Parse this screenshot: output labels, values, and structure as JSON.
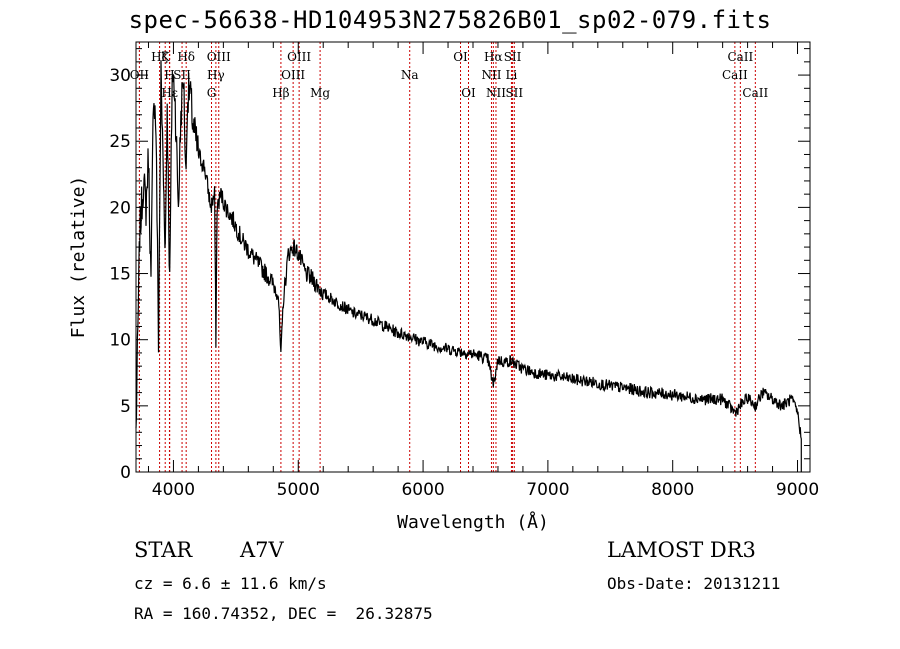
{
  "chart_data": {
    "type": "line",
    "title": "spec-56638-HD104953N275826B01_sp02-079.fits",
    "xlabel": "Wavelength (Å)",
    "ylabel": "Flux (relative)",
    "xlim": [
      3700,
      9100
    ],
    "ylim": [
      0,
      32.5
    ],
    "xticks": [
      4000,
      5000,
      6000,
      7000,
      8000,
      9000
    ],
    "yticks": [
      0,
      5,
      10,
      15,
      20,
      25,
      30
    ],
    "line_color": "#cc0000",
    "series": [
      {
        "name": "spectrum",
        "x": [
          3700,
          3730,
          3760,
          3780,
          3800,
          3820,
          3840,
          3860,
          3880,
          3900,
          3920,
          3935,
          3950,
          3970,
          3990,
          4010,
          4040,
          4060,
          4080,
          4101,
          4110,
          4130,
          4160,
          4200,
          4250,
          4300,
          4330,
          4340,
          4350,
          4380,
          4420,
          4480,
          4550,
          4620,
          4700,
          4780,
          4840,
          4861,
          4880,
          4920,
          4960,
          5000,
          5060,
          5120,
          5200,
          5280,
          5360,
          5440,
          5520,
          5600,
          5700,
          5800,
          5890,
          5950,
          6050,
          6150,
          6250,
          6350,
          6450,
          6520,
          6563,
          6600,
          6650,
          6700,
          6800,
          6900,
          7000,
          7100,
          7200,
          7350,
          7500,
          7650,
          7800,
          7950,
          8100,
          8250,
          8400,
          8498,
          8542,
          8600,
          8662,
          8720,
          8800,
          8880,
          8950,
          9000,
          9030
        ],
        "y": [
          3,
          18,
          22,
          20,
          24,
          14,
          29,
          26,
          10,
          30,
          22,
          17,
          28,
          14,
          30,
          29,
          20,
          27,
          30,
          22,
          28,
          29,
          26,
          24,
          23,
          20,
          21,
          10,
          20,
          21,
          20,
          19,
          17.5,
          16.5,
          15.5,
          14.5,
          13.5,
          8.5,
          13,
          16.5,
          17,
          16.5,
          15,
          14.5,
          13.5,
          13,
          12.5,
          12,
          11.8,
          11.5,
          11,
          10.5,
          10.3,
          10,
          9.7,
          9.4,
          9.2,
          9,
          8.8,
          8.5,
          6.5,
          8.5,
          8.3,
          8.4,
          7.8,
          7.5,
          7.3,
          7.2,
          7,
          6.8,
          6.5,
          6.3,
          6,
          5.9,
          5.7,
          5.5,
          5.5,
          4.5,
          5,
          5.6,
          5,
          6,
          5.5,
          5,
          5.5,
          4.5,
          2.5
        ]
      }
    ],
    "lines": [
      {
        "label": "Hζ",
        "x": 3889,
        "row": 0
      },
      {
        "label": "OII",
        "x": 3727,
        "row": 1
      },
      {
        "label": "Hε",
        "x": 3970,
        "row": 2
      },
      {
        "label": "K",
        "x": 3934,
        "row": 0
      },
      {
        "label": "H",
        "x": 3968,
        "row": 1
      },
      {
        "label": "SII",
        "x": 4069,
        "row": 1
      },
      {
        "label": "Hδ",
        "x": 4102,
        "row": 0
      },
      {
        "label": "OIII",
        "x": 4363,
        "row": 0
      },
      {
        "label": "Hγ",
        "x": 4340,
        "row": 1
      },
      {
        "label": "G",
        "x": 4305,
        "row": 2
      },
      {
        "label": "OIII",
        "x": 5007,
        "row": 0
      },
      {
        "label": "OIII",
        "x": 4959,
        "row": 1
      },
      {
        "label": "Hβ",
        "x": 4861,
        "row": 2
      },
      {
        "label": "Mg",
        "x": 5175,
        "row": 2
      },
      {
        "label": "Na",
        "x": 5893,
        "row": 1
      },
      {
        "label": "OI",
        "x": 6300,
        "row": 0
      },
      {
        "label": "OI",
        "x": 6364,
        "row": 2
      },
      {
        "label": "Hα",
        "x": 6563,
        "row": 0
      },
      {
        "label": "NII",
        "x": 6548,
        "row": 1
      },
      {
        "label": "NII",
        "x": 6584,
        "row": 2
      },
      {
        "label": "SII",
        "x": 6717,
        "row": 0
      },
      {
        "label": "Li",
        "x": 6708,
        "row": 1
      },
      {
        "label": "SII",
        "x": 6731,
        "row": 2
      },
      {
        "label": "CaII",
        "x": 8542,
        "row": 0
      },
      {
        "label": "CaII",
        "x": 8498,
        "row": 1
      },
      {
        "label": "CaII",
        "x": 8662,
        "row": 2
      }
    ]
  },
  "info": {
    "object_type": "STAR",
    "subclass": "A7V",
    "survey": "LAMOST DR3",
    "cz": "cz = 6.6 ± 11.6 km/s",
    "obs_date": "Obs-Date: 20131211",
    "coords": "RA = 160.74352, DEC =  26.32875"
  }
}
